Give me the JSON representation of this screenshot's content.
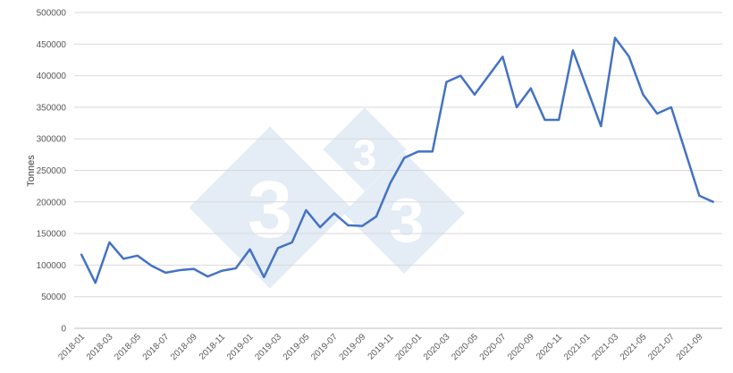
{
  "chart_data": {
    "type": "line",
    "title": "",
    "xlabel": "",
    "ylabel": "Tonnes",
    "ylim": [
      0,
      500000
    ],
    "yticks": [
      "0",
      "50000",
      "100000",
      "150000",
      "200000",
      "250000",
      "300000",
      "350000",
      "400000",
      "450000",
      "500000"
    ],
    "grid": true,
    "legend": "none",
    "line_color": "#4472c4",
    "x": [
      "2018-01",
      "2018-02",
      "2018-03",
      "2018-04",
      "2018-05",
      "2018-06",
      "2018-07",
      "2018-08",
      "2018-09",
      "2018-10",
      "2018-11",
      "2018-12",
      "2019-01",
      "2019-02",
      "2019-03",
      "2019-04",
      "2019-05",
      "2019-06",
      "2019-07",
      "2019-08",
      "2019-09",
      "2019-10",
      "2019-11",
      "2019-12",
      "2020-01",
      "2020-02",
      "2020-03",
      "2020-04",
      "2020-05",
      "2020-06",
      "2020-07",
      "2020-08",
      "2020-09",
      "2020-10",
      "2020-11",
      "2020-12",
      "2021-01",
      "2021-02",
      "2021-03",
      "2021-04",
      "2021-05",
      "2021-06",
      "2021-07",
      "2021-08",
      "2021-09",
      "2021-10"
    ],
    "xtick_labels": [
      "2018-01",
      "2018-03",
      "2018-05",
      "2018-07",
      "2018-09",
      "2018-11",
      "2019-01",
      "2019-03",
      "2019-05",
      "2019-07",
      "2019-09",
      "2019-11",
      "2020-01",
      "2020-03",
      "2020-05",
      "2020-07",
      "2020-09",
      "2020-11",
      "2021-01",
      "2021-03",
      "2021-05",
      "2021-07",
      "2021-09"
    ],
    "values": [
      117000,
      72000,
      136000,
      110000,
      115000,
      99000,
      88000,
      92000,
      94000,
      82000,
      91000,
      95000,
      125000,
      81000,
      127000,
      136000,
      187000,
      160000,
      182000,
      163000,
      162000,
      177000,
      230000,
      270000,
      280000,
      280000,
      390000,
      400000,
      370000,
      400000,
      430000,
      350000,
      380000,
      330000,
      330000,
      440000,
      380000,
      320000,
      460000,
      430000,
      370000,
      340000,
      350000,
      280000,
      210000,
      200000
    ]
  },
  "watermark_glyph": "3"
}
